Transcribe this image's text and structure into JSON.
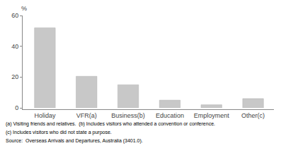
{
  "chart_data": {
    "type": "bar",
    "categories": [
      "Holiday",
      "VFR(a)",
      "Business(b)",
      "Education",
      "Employment",
      "Other(c)"
    ],
    "values": [
      52.0,
      20.5,
      15.0,
      5.0,
      2.0,
      6.0
    ],
    "color": "#c8c8c8",
    "ylabel": "%",
    "ylim": [
      0,
      60
    ],
    "yticks": [
      0,
      20,
      40,
      60
    ],
    "grid": false,
    "annotations": [
      "(a) Visiting friends and relatives.  (b) Includes visitors who attended a convention or conference.",
      "(c) Includes visitors who did not state a purpose.",
      "Source:  Overseas Arrivals and Departures, Australia (3401.0)."
    ]
  }
}
